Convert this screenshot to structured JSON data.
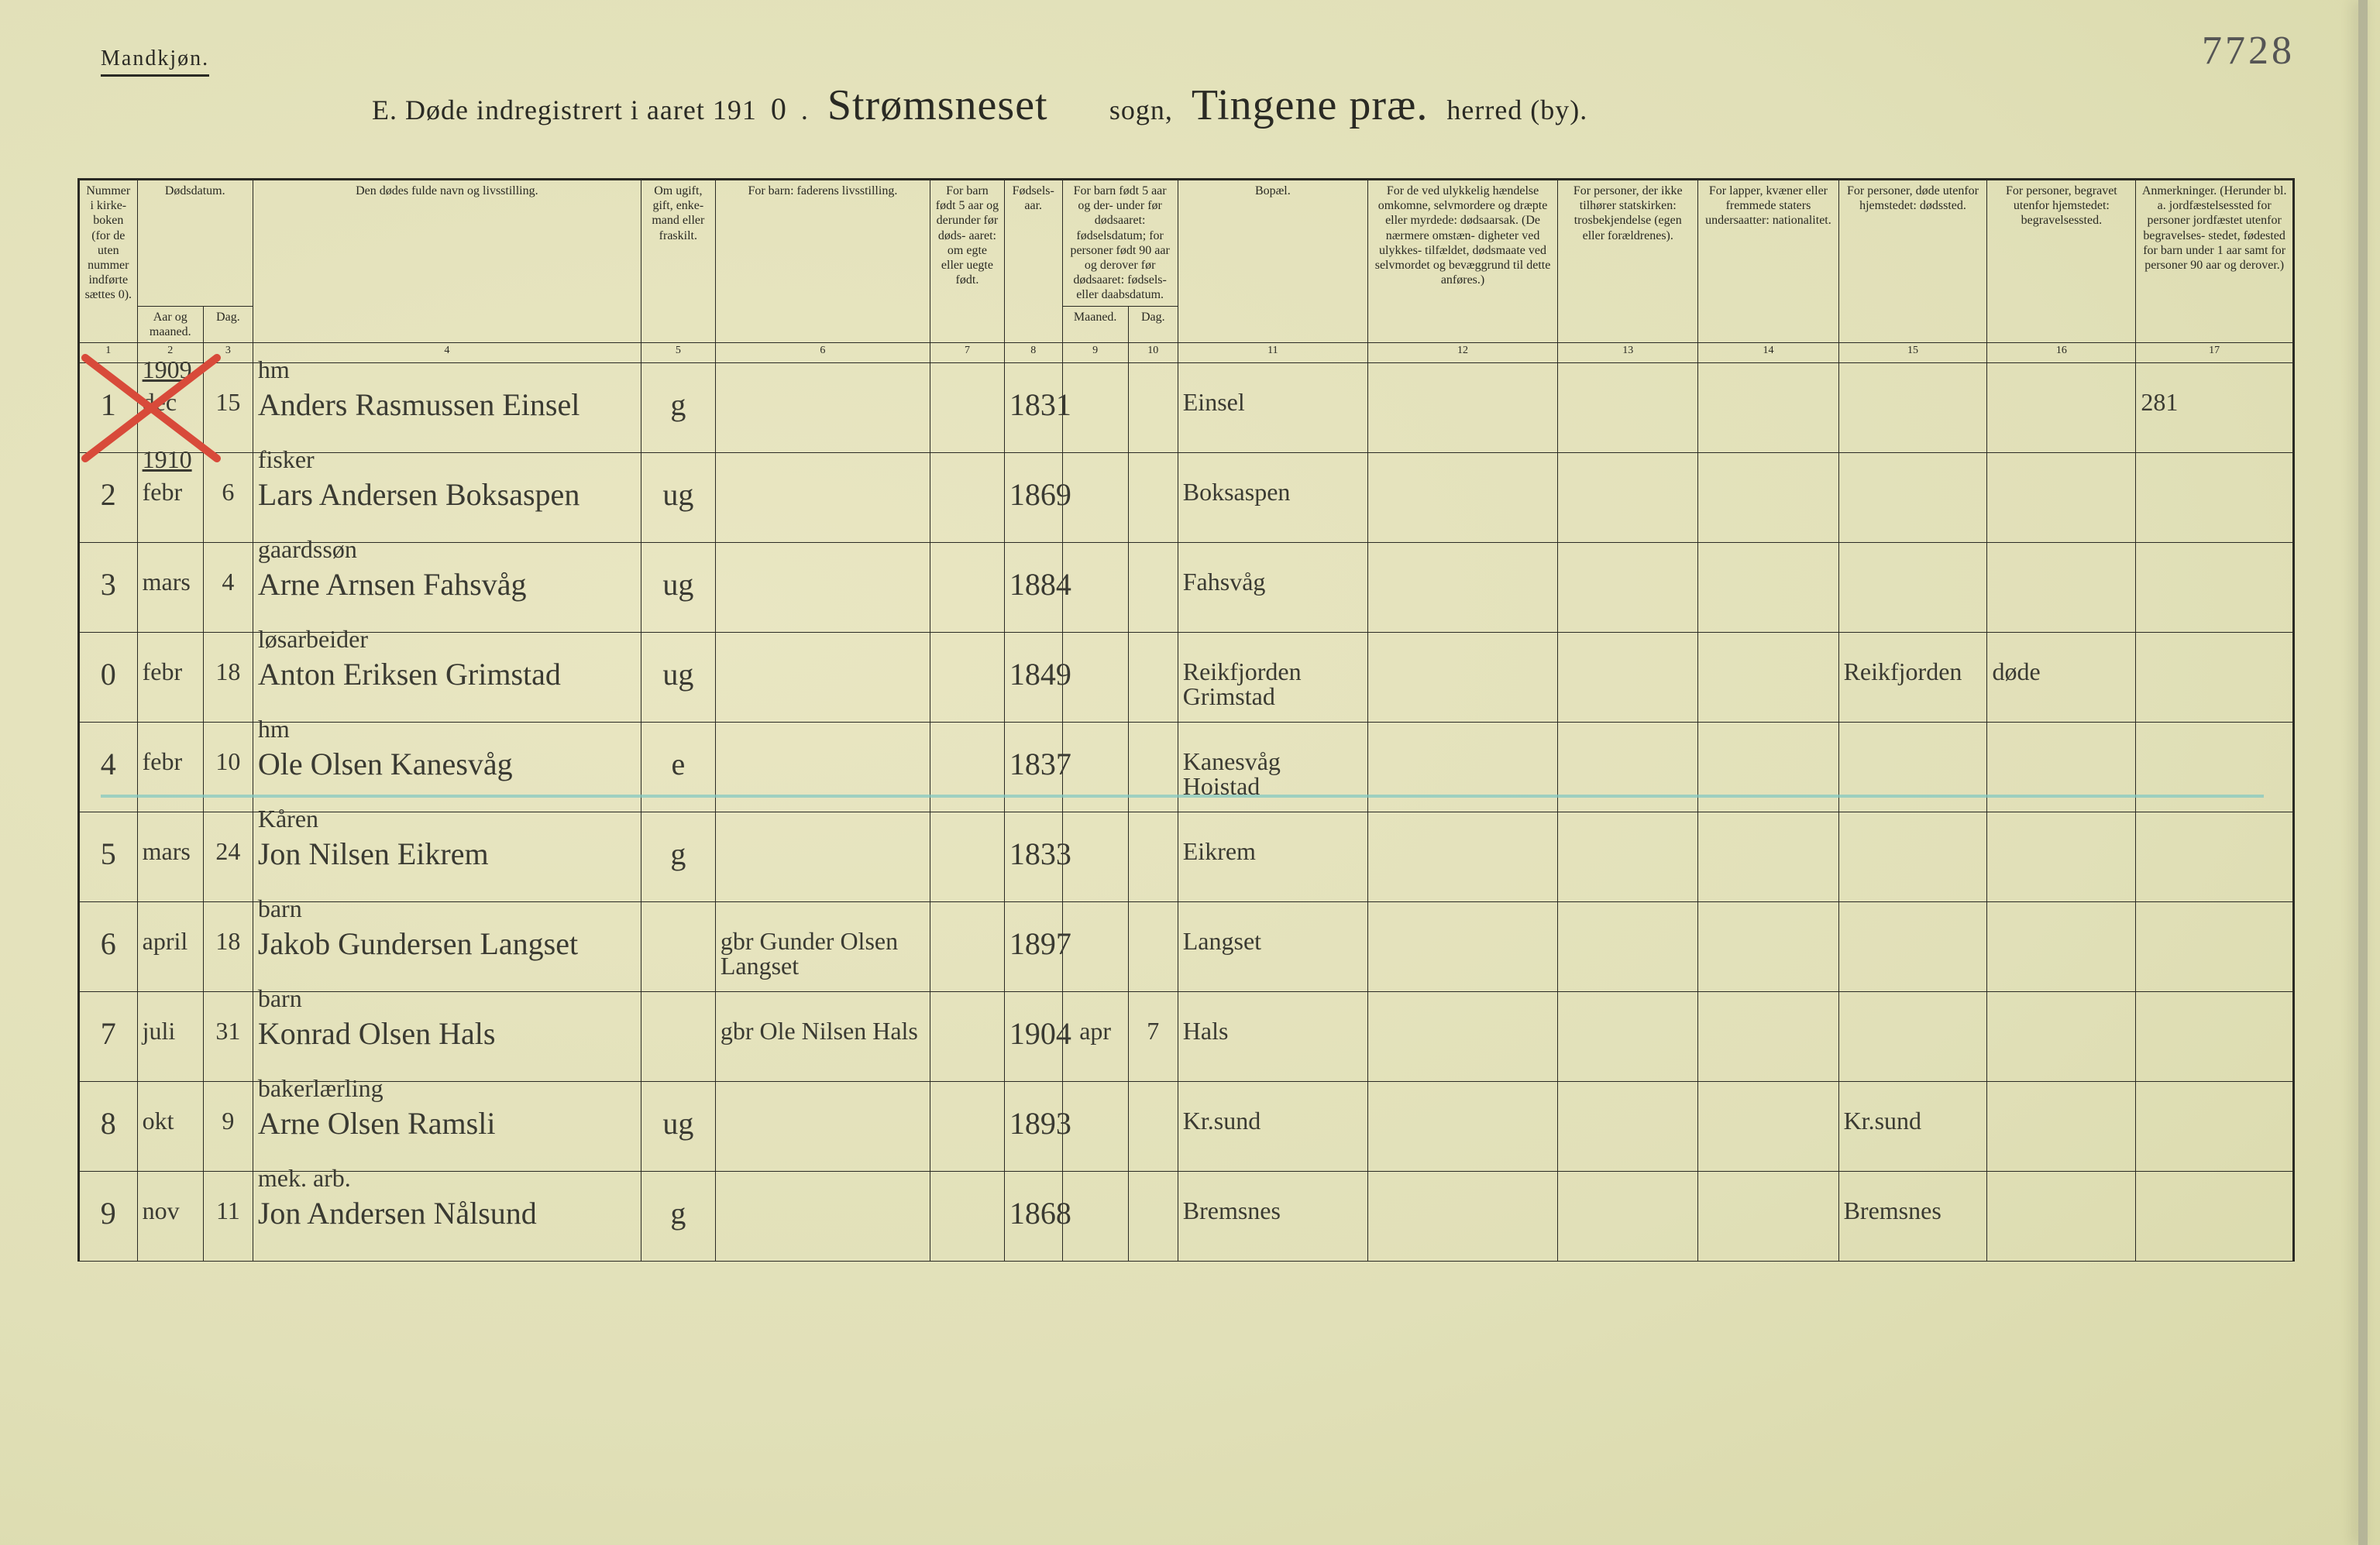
{
  "header": {
    "gender_label": "Mandkjøn.",
    "title_prefix": "E.   Døde indregistrert i aaret 191",
    "title_year_digit": "0",
    "title_dot": ".",
    "parish_handwritten": "Strømsneset",
    "label_sogn": "sogn,",
    "herred_handwritten": "Tingene præ.",
    "label_herred": "herred (by).",
    "page_number_hand": "7728"
  },
  "columns": {
    "c1": "Nummer\ni kirke-\nboken\n(for de\nuten\nnummer\nindførte\nsættes\n0).",
    "c2a": "Dødsdatum.",
    "c2_year": "Aar\nog\nmaaned.",
    "c2_day": "Dag.",
    "c4": "Den dødes fulde navn og livsstilling.",
    "c5": "Om\nugift,\ngift,\nenke-\nmand\neller\nfraskilt.",
    "c6": "For barn:\n\nfaderens livsstilling.",
    "c7": "For barn\nfødt\n5 aar og\nderunder\nfør døds-\naaret:\nom egte\neller\nuegte\nfødt.",
    "c8": "Fødsels-\naar.",
    "c9a": "For barn født\n5 aar og der-\nunder før\ndødsaaret:\nfødselsdatum;\nfor personer\nfødt 90 aar\nog derover før\ndødsaaret:\nfødsels- eller\ndaabsdatum.",
    "c9_m": "Maaned.",
    "c9_d": "Dag.",
    "c11": "Bopæl.",
    "c12": "For de ved ulykkelig\nhændelse omkomne,\nselvmordere og\ndræpte eller myrdede:\ndødsaarsak.\n(De nærmere omstæn-\ndigheter ved ulykkes-\ntilfældet, dødsmaate ved\nselvmordet og bevæggrund\ntil dette anføres.)",
    "c13": "For personer,\nder ikke tilhører\nstatskirken:\ntrosbekjendelse\n(egen eller forældrenes).",
    "c14": "For lapper, kvæner\neller fremmede\nstaters undersaatter:\nnationalitet.",
    "c15": "For personer, døde\nutenfor hjemstedet:\ndødssted.",
    "c16": "For personer, begravet\nutenfor hjemstedet:\nbegravelsessted.",
    "c17": "Anmerkninger.\n(Herunder bl. a.\njordfæstelsessted for\npersoner jordfæstet\nutenfor begravelses-\nstedet, fødested for\nbarn under 1 aar\nsamt for personer\n90 aar og derover.)"
  },
  "colnums": [
    "1",
    "2",
    "3",
    "4",
    "5",
    "6",
    "7",
    "8",
    "9",
    "10",
    "11",
    "12",
    "13",
    "14",
    "15",
    "16",
    "17"
  ],
  "rows": [
    {
      "num": "1",
      "year_header": "1909",
      "month": "dec",
      "day": "15",
      "occupation": "hm",
      "name": "Anders Rasmussen Einsel",
      "civil": "g",
      "father": "",
      "birthyear": "1831",
      "birth_m": "",
      "birth_d": "",
      "residence": "Einsel",
      "col15": "",
      "col16": "",
      "remark": "281"
    },
    {
      "num": "2",
      "year_header": "1910",
      "month": "febr",
      "day": "6",
      "occupation": "fisker",
      "name": "Lars Andersen Boksaspen",
      "civil": "ug",
      "father": "",
      "birthyear": "1869",
      "birth_m": "",
      "birth_d": "",
      "residence": "Boksaspen",
      "col15": "",
      "col16": "",
      "remark": ""
    },
    {
      "num": "3",
      "year_header": "",
      "month": "mars",
      "day": "4",
      "occupation": "gaardssøn",
      "name": "Arne Arnsen Fahsvåg",
      "civil": "ug",
      "father": "",
      "birthyear": "1884",
      "birth_m": "",
      "birth_d": "",
      "residence": "Fahsvåg",
      "col15": "",
      "col16": "",
      "remark": ""
    },
    {
      "num": "0",
      "year_header": "",
      "month": "febr",
      "day": "18",
      "occupation": "løsarbeider",
      "name": "Anton Eriksen Grimstad",
      "civil": "ug",
      "father": "",
      "birthyear": "1849",
      "birth_m": "",
      "birth_d": "",
      "residence": "Reikfjorden  Grimstad",
      "col15": "Reikfjorden",
      "col16": "døde",
      "remark": ""
    },
    {
      "num": "4",
      "year_header": "",
      "month": "febr",
      "day": "10",
      "occupation": "hm",
      "name": "Ole Olsen Kanesvåg",
      "civil": "e",
      "father": "",
      "birthyear": "1837",
      "birth_m": "",
      "birth_d": "",
      "residence": "Kanesvåg  Hoistad",
      "col15": "",
      "col16": "",
      "remark": ""
    },
    {
      "num": "5",
      "year_header": "",
      "month": "mars",
      "day": "24",
      "occupation": "Kåren",
      "name": "Jon Nilsen Eikrem",
      "civil": "g",
      "father": "",
      "birthyear": "1833",
      "birth_m": "",
      "birth_d": "",
      "residence": "Eikrem",
      "col15": "",
      "col16": "",
      "remark": ""
    },
    {
      "num": "6",
      "year_header": "",
      "month": "april",
      "day": "18",
      "occupation": "barn",
      "name": "Jakob Gundersen Langset",
      "civil": "",
      "father": "gbr  Gunder Olsen Langset",
      "birthyear": "1897",
      "birth_m": "",
      "birth_d": "",
      "residence": "Langset",
      "col15": "",
      "col16": "",
      "remark": ""
    },
    {
      "num": "7",
      "year_header": "",
      "month": "juli",
      "day": "31",
      "occupation": "barn",
      "name": "Konrad Olsen Hals",
      "civil": "",
      "father": "gbr  Ole Nilsen Hals",
      "birthyear": "1904",
      "birth_m": "apr",
      "birth_d": "7",
      "residence": "Hals",
      "col15": "",
      "col16": "",
      "remark": ""
    },
    {
      "num": "8",
      "year_header": "",
      "month": "okt",
      "day": "9",
      "occupation": "bakerlærling",
      "name": "Arne Olsen Ramsli",
      "civil": "ug",
      "father": "",
      "birthyear": "1893",
      "birth_m": "",
      "birth_d": "",
      "residence": "Kr.sund",
      "col15": "Kr.sund",
      "col16": "",
      "remark": ""
    },
    {
      "num": "9",
      "year_header": "",
      "month": "nov",
      "day": "11",
      "occupation": "mek. arb.",
      "name": "Jon Andersen Nålsund",
      "civil": "g",
      "father": "",
      "birthyear": "1868",
      "birth_m": "",
      "birth_d": "",
      "residence": "Bremsnes",
      "col15": "Bremsnes",
      "col16": "",
      "remark": ""
    }
  ]
}
